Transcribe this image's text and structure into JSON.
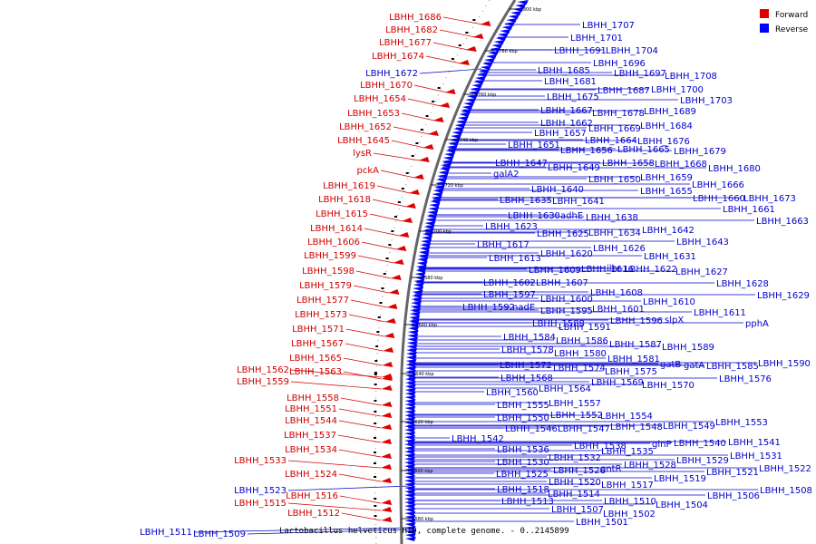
{
  "legend": {
    "items": [
      {
        "label": "Forward",
        "color": "#e00000"
      },
      {
        "label": "Reverse",
        "color": "#0000ff"
      }
    ]
  },
  "caption": "Lactobacillus helveticus H10, complete genome. - 0..2145899",
  "ticks": [
    "1580 kbp",
    "1600 kbp",
    "1620 kbp",
    "1640 kbp",
    "1660 kbp",
    "1680 kbp",
    "1700 kbp",
    "1720 kbp",
    "1740 kbp",
    "1760 kbp",
    "1780 kbp",
    "1800 kbp"
  ],
  "forward_labels": [
    "LBHH_1686",
    "LBHH_1682",
    "LBHH_1677",
    "LBHH_1674",
    "LBHH_1670",
    "LBHH_1654",
    "LBHH_1653",
    "LBHH_1652",
    "LBHH_1645",
    "lysR",
    "pckA",
    "LBHH_1619",
    "LBHH_1618",
    "LBHH_1615",
    "LBHH_1614",
    "LBHH_1606",
    "LBHH_1599",
    "LBHH_1598",
    "LBHH_1579",
    "LBHH_1577",
    "LBHH_1573",
    "LBHH_1571",
    "LBHH_1567",
    "LBHH_1565",
    "LBHH_1562",
    "LBHH_1563",
    "LBHH_1559",
    "LBHH_1558",
    "LBHH_1551",
    "LBHH_1544",
    "LBHH_1537",
    "LBHH_1534",
    "LBHH_1533",
    "LBHH_1524",
    "LBHH_1516",
    "LBHH_1515",
    "LBHH_1512"
  ],
  "reverse_left_labels": [
    "LBHH_1672",
    "LBHH_1523",
    "LBHH_1511",
    "LBHH_1509"
  ],
  "reverse_labels": [
    "LBHH_1707",
    "LBHH_1701",
    "LBHH_1691",
    "LBHH_1704",
    "LBHH_1696",
    "LBHH_1685",
    "LBHH_1697",
    "LBHH_1708",
    "LBHH_1681",
    "LBHH_1687",
    "LBHH_1700",
    "LBHH_1675",
    "LBHH_1703",
    "LBHH_1667",
    "LBHH_1678",
    "LBHH_1689",
    "LBHH_1662",
    "LBHH_1684",
    "LBHH_1657",
    "LBHH_1669",
    "LBHH_1664",
    "LBHH_1676",
    "LBHH_1651",
    "LBHH_1656",
    "LBHH_1665",
    "LBHH_1679",
    "LBHH_1658",
    "LBHH_1668",
    "LBHH_1647",
    "LBHH_1649",
    "LBHH_1680",
    "galA2",
    "LBHH_1650",
    "LBHH_1659",
    "LBHH_1655",
    "LBHH_1666",
    "LBHH_1640",
    "LBHH_1660",
    "LBHH_1673",
    "LBHH_1635",
    "LBHH_1641",
    "LBHH_1661",
    "LBHH_1630",
    "adhE",
    "LBHH_1638",
    "LBHH_1663",
    "LBHH_1623",
    "LBHH_1642",
    "LBHH_1625",
    "LBHH_1634",
    "LBHH_1643",
    "LBHH_1617",
    "LBHH_1626",
    "LBHH_1620",
    "LBHH_1631",
    "LBHH_1613",
    "LBHH_1609",
    "LBHH_1616",
    "ilhr",
    "LBHH_1622",
    "LBHH_1627",
    "LBHH_1602",
    "LBHH_1607",
    "LBHH_1628",
    "LBHH_1597",
    "LBHH_1608",
    "LBHH_1629",
    "LBHH_1600",
    "LBHH_1610",
    "LBHH_1592",
    "nadE",
    "LBHH_1595",
    "LBHH_1601",
    "LBHH_1611",
    "LBHH_1588",
    "LBHH_1596",
    "slpX",
    "pphA",
    "LBHH_1591",
    "LBHH_1584",
    "LBHH_1586",
    "LBHH_1587",
    "LBHH_1589",
    "LBHH_1578",
    "LBHH_1580",
    "LBHH_1581",
    "LBHH_1572",
    "LBHH_1574",
    "gatB",
    "gatA",
    "LBHH_1585",
    "LBHH_1590",
    "LBHH_1575",
    "LBHH_1568",
    "LBHH_1576",
    "LBHH_1569",
    "LBHH_1570",
    "LBHH_1560",
    "LBHH_1564",
    "LBHH_1555",
    "LBHH_1557",
    "LBHH_1550",
    "LBHH_1552",
    "LBHH_1554",
    "LBHH_1546",
    "LBHH_1547",
    "LBHH_1548",
    "LBHH_1549",
    "LBHH_1553",
    "LBHH_1542",
    "LBHH_1538",
    "glnP",
    "LBHH_1540",
    "LBHH_1541",
    "LBHH_1536",
    "LBHH_1535",
    "LBHH_1532",
    "LBHH_1531",
    "LBHH_1530",
    "LBHH_1529",
    "LBHH_1526",
    "gntR",
    "LBHH_1528",
    "LBHH_1521",
    "LBHH_1522",
    "LBHH_1525",
    "LBHH_1520",
    "LBHH_1519",
    "LBHH_1517",
    "LBHH_1518",
    "LBHH_1514",
    "LBHH_1513",
    "LBHH_1510",
    "LBHH_1504",
    "LBHH_1506",
    "LBHH_1508",
    "LBHH_1507",
    "LBHH_1502",
    "LBHH_1501"
  ]
}
